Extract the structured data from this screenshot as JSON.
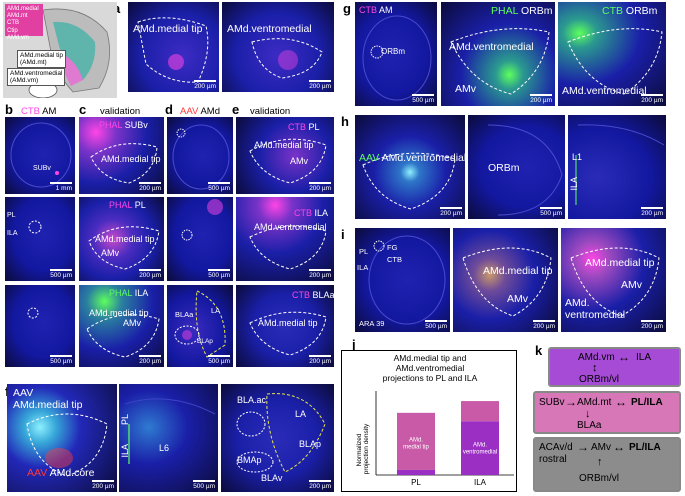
{
  "colors": {
    "magenta": "#ff45e6",
    "green": "#5dff5d",
    "red": "#ff3b3b",
    "tissue_blue": "#1a1fa8",
    "background_dark": "#0b0b3a",
    "chart_purple": "#9b2fc4",
    "chart_pink": "#c85aa8",
    "box_purple": "#a64bd6",
    "box_pink": "#d777b7",
    "box_gray": "#8c8c8c"
  },
  "letters": {
    "a": "a",
    "b": "b",
    "c": "c",
    "d": "d",
    "e": "e",
    "f": "f",
    "g": "g",
    "h": "h",
    "i": "i",
    "j": "j",
    "k": "k"
  },
  "headers": {
    "b_tracer": "CTB",
    "b_region": "AM",
    "c": "validation",
    "d_tracer": "AAV",
    "d_region": "AMd",
    "e": "validation"
  },
  "panel_a": {
    "inset_lines": [
      "AMd.medial",
      "AMd.mt",
      "CTB",
      "Ctip",
      "AMd.vm",
      "ORB"
    ],
    "legend1": [
      "AMd.medial tip",
      "(AMd.mt)"
    ],
    "legend2": [
      "AMd.ventromedial",
      "(AMd.vm)"
    ],
    "img1_label": "AMd.medial tip",
    "img2_label": "AMd.ventromedial",
    "scale": "200 µm"
  },
  "panel_b": {
    "row1_label": "SUBv",
    "row1_scale": "1 mm",
    "row2_labels": [
      "PL",
      "ILA"
    ],
    "row2_scale": "500 µm",
    "row3_scale": "500 µm"
  },
  "panel_c": {
    "row1_tracer": "PHAL",
    "row1_region": "SUBv",
    "row1_label": "AMd.medial tip",
    "row2_tracer": "PHAL",
    "row2_region": "PL",
    "row2_labels": [
      "AMd.medial tip",
      "AMv"
    ],
    "row3_tracer": "PHAL",
    "row3_region": "ILA",
    "row3_labels": [
      "AMd.medial tip",
      "AMv"
    ],
    "scale": "200 µm"
  },
  "panel_d": {
    "row3_labels": [
      "BLAa",
      "LA",
      "BLAp"
    ],
    "scale": "500 µm"
  },
  "panel_e": {
    "row1_tracer": "CTB",
    "row1_region": "PL",
    "row1_labels": [
      "AMd.medial tip",
      "AMv"
    ],
    "row2_tracer": "CTB",
    "row2_region": "ILA",
    "row2_labels": [
      "AMd.ventromedial"
    ],
    "row3_tracer": "CTB",
    "row3_region": "BLAa",
    "row3_labels": [
      "AMd.medial tip"
    ],
    "scale": "200 µm"
  },
  "panel_f": {
    "img1_tracer": "AAV",
    "img1_label1": "AMd.medial tip",
    "img1_tracer2": "AAV",
    "img1_label2": "AMd.core",
    "img1_scale": "200 µm",
    "img2_labels": [
      "PL",
      "ILA",
      "L6"
    ],
    "img2_scale": "500 µm",
    "img3_labels": [
      "BLA.ac",
      "LA",
      "BLAp",
      "BMAp",
      "BLAv"
    ],
    "img3_scale": "200 µm"
  },
  "panel_g": {
    "img1_tracer": "CTB",
    "img1_region": "AM",
    "img1_label": "ORBm",
    "img1_scale": "500 µm",
    "img2_tracer": "PHAL",
    "img2_region": "ORBm",
    "img2_labels": [
      "AMd.ventromedial",
      "AMv"
    ],
    "img2_scale": "200 µm",
    "img3_tracer": "CTB",
    "img3_region": "ORBm",
    "img3_label": "AMd.ventromedial",
    "img3_scale": "200 µm"
  },
  "panel_h": {
    "img1_tracer": "AAV",
    "img1_region": "AMd.ventromedial",
    "img1_scale": "200 µm",
    "img2_label": "ORBm",
    "img2_scale": "500 µm",
    "img3_labels": [
      "L1",
      "ILA"
    ],
    "img3_scale": "200 µm"
  },
  "panel_i": {
    "img1_labels": [
      "PL",
      "ILA",
      "FG",
      "CTB"
    ],
    "img1_atlas": "ARA  39",
    "img1_scale": "500 µm",
    "img2_labels": [
      "AMd.medial tip",
      "AMv"
    ],
    "img2_scale": "200 µm",
    "img3_labels": [
      "AMd.medial tip",
      "AMv",
      "AMd.",
      "ventromedial"
    ],
    "img3_scale": "200 µm"
  },
  "chart_data": {
    "type": "bar",
    "title": "AMd.medial tip and AMd.ventromedial projections to PL and ILA",
    "title_lines": [
      "AMd.medial tip and",
      "AMd.ventromedial",
      "projections to PL and ILA"
    ],
    "ylabel": "Normalized projection density",
    "ylabel_lines": [
      "Normalized",
      "projection density"
    ],
    "categories": [
      "PL",
      "ILA"
    ],
    "stacked": true,
    "series": [
      {
        "name": "AMd. medial tip",
        "values": [
          0.03,
          0.32
        ],
        "color": "#9b2fc4"
      },
      {
        "name": "AMd. ventromedial",
        "values": [
          0.34,
          0.12
        ],
        "color": "#c85aa8"
      }
    ],
    "segment_labels": [
      [
        "AMd.",
        "medial tip"
      ],
      [
        "AMd.",
        "ventromedial"
      ]
    ],
    "ylim": [
      0,
      0.5
    ],
    "grid": false
  },
  "panel_k": {
    "box1": {
      "left": "AMd.vm",
      "right": "ILA",
      "bottom": "ORBm/vl"
    },
    "box2": {
      "left": "SUBv",
      "middle": "AMd.mt",
      "right": "PL/ILA",
      "bottom": "BLAa"
    },
    "box3": {
      "left1": "ACAv/d",
      "left2": "rostral",
      "middle": "AMv",
      "right": "PL/ILA",
      "bottom": "ORBm/vl"
    },
    "arrow_right": "→",
    "arrow_both": "↔",
    "arrow_up_down": "↕",
    "arrow_down": "↓",
    "arrow_up": "↑"
  }
}
